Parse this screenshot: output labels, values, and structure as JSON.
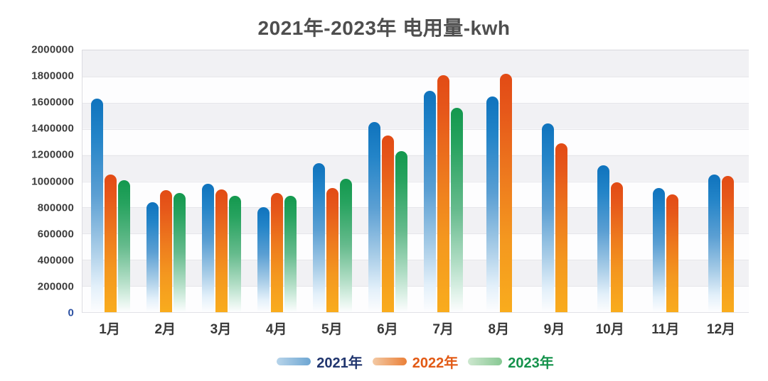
{
  "chart_data": {
    "type": "bar",
    "title": "2021年-2023年 电用量-kwh",
    "unit": "kwh",
    "categories": [
      "1月",
      "2月",
      "3月",
      "4月",
      "5月",
      "6月",
      "7月",
      "8月",
      "9月",
      "10月",
      "11月",
      "12月"
    ],
    "series": [
      {
        "name": "2021年",
        "label_color": "#20356e",
        "bar_gradient": [
          [
            "#0f73bd",
            0
          ],
          [
            "#2384c8",
            18
          ],
          [
            "#5b9fd3",
            45
          ],
          [
            "#a7cce7",
            70
          ],
          [
            "#e3f0fa",
            88
          ],
          [
            "rgba(255,255,255,0)",
            100
          ]
        ],
        "swatch_gradient": [
          "#b7d4ea",
          "#6ea6d2"
        ],
        "values": [
          1630000,
          840000,
          980000,
          800000,
          1140000,
          1450000,
          1690000,
          1650000,
          1440000,
          1120000,
          950000,
          1050000
        ]
      },
      {
        "name": "2022年",
        "label_color": "#e25a15",
        "bar_gradient": [
          [
            "#e24b15",
            0
          ],
          [
            "#e6571a",
            15
          ],
          [
            "#ee7c1e",
            45
          ],
          [
            "#f4981f",
            70
          ],
          [
            "#f9ac1d",
            100
          ]
        ],
        "swatch_gradient": [
          "#f3c9a4",
          "#ea8038"
        ],
        "values": [
          1050000,
          930000,
          940000,
          910000,
          950000,
          1350000,
          1810000,
          1820000,
          1290000,
          990000,
          900000,
          1040000
        ]
      },
      {
        "name": "2023年",
        "label_color": "#14924b",
        "bar_gradient": [
          [
            "#13984e",
            0
          ],
          [
            "#27a35f",
            18
          ],
          [
            "#66bb8d",
            50
          ],
          [
            "#aedcc3",
            75
          ],
          [
            "#e4f4ec",
            92
          ],
          [
            "rgba(255,255,255,0)",
            100
          ]
        ],
        "swatch_gradient": [
          "#cde7cf",
          "#88c893"
        ],
        "values": [
          1010000,
          910000,
          890000,
          890000,
          1020000,
          1230000,
          1560000,
          null,
          null,
          null,
          null,
          null
        ]
      }
    ],
    "ylim": [
      0,
      2000000
    ],
    "y_tick_step": 200000,
    "y_tick_labels": [
      "2000000",
      "1800000",
      "1600000",
      "1400000",
      "1200000",
      "1000000",
      "800000",
      "600000",
      "400000",
      "200000",
      "0"
    ],
    "zero_tick_color": "#2b50a1",
    "grid": true,
    "plot_band_colors": [
      "#f1f1f4",
      "#fdfdfe"
    ],
    "legend_position": "bottom"
  }
}
